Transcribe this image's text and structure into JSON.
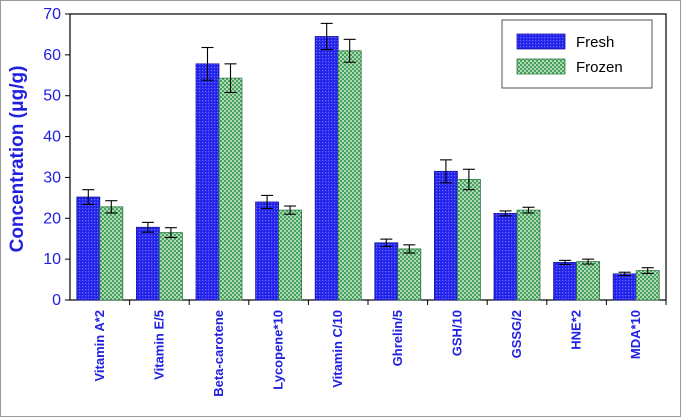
{
  "chart_data": {
    "type": "bar",
    "title": "",
    "xlabel": "",
    "ylabel": "Concentration (μg/g)",
    "ylim": [
      0,
      70
    ],
    "yticks": [
      0,
      10,
      20,
      30,
      40,
      50,
      60,
      70
    ],
    "grid": false,
    "legend_position": "top-right",
    "categories": [
      "Vitamin A*2",
      "Vitamin E/5",
      "Beta-carotene",
      "Lycopene*10",
      "Vitamin C/10",
      "Ghrelin/5",
      "GSH/10",
      "GSSG/2",
      "HNE*2",
      "MDA*10"
    ],
    "series": [
      {
        "name": "Fresh",
        "color": "#2a2af0",
        "values": [
          25.2,
          17.8,
          57.8,
          24.0,
          64.5,
          14.0,
          31.5,
          21.2,
          9.2,
          6.4
        ],
        "errors": [
          1.8,
          1.2,
          4.0,
          1.6,
          3.2,
          0.9,
          2.8,
          0.6,
          0.5,
          0.4
        ]
      },
      {
        "name": "Frozen",
        "color": "#4fae6a",
        "values": [
          22.8,
          16.5,
          54.3,
          22.0,
          61.0,
          12.5,
          29.5,
          22.0,
          9.4,
          7.2
        ],
        "errors": [
          1.5,
          1.2,
          3.5,
          1.0,
          2.8,
          1.0,
          2.5,
          0.7,
          0.6,
          0.7
        ]
      }
    ]
  }
}
